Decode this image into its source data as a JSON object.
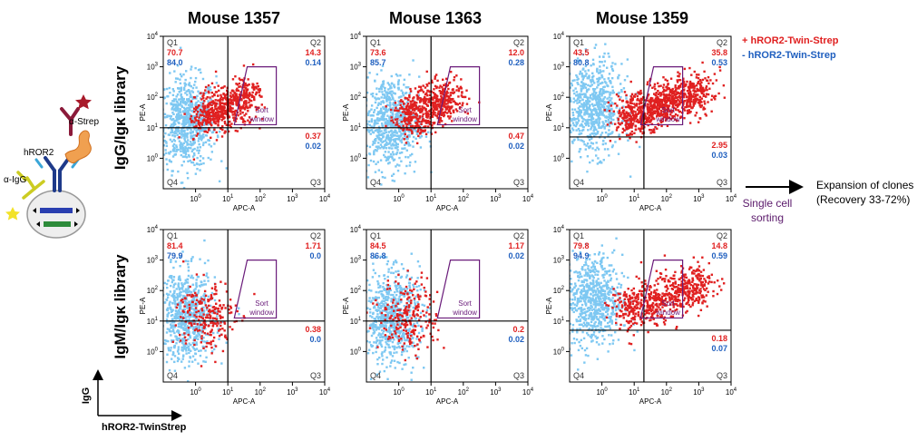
{
  "figure": {
    "legend_pos": "+ hROR2-Twin-Strep",
    "legend_neg": "- hROR2-Twin-Strep",
    "row_labels": [
      "IgG/Igκ library",
      "IgM/Igκ library"
    ],
    "schematic_labels": {
      "strep": "α-Strep",
      "hror2": "hROR2",
      "igg": "α-IgG"
    },
    "axis_arrow_y": "IgG",
    "axis_arrow_x": "hROR2-TwinStrep",
    "sorting_label": [
      "Single cell",
      "sorting"
    ],
    "expansion_label": [
      "Expansion of clones",
      "(Recovery 33-72%)"
    ],
    "colors": {
      "positive": "#e02020",
      "negative": "#1f5fbf",
      "cells_negative": "#7ec8f2",
      "gate": "#6a1b7a",
      "sorting_text": "#5b1a6b"
    }
  },
  "chart_data": [
    {
      "type": "scatter",
      "title": "Mouse 1357",
      "library": "IgG/Igκ",
      "xlabel": "APC-A",
      "ylabel": "PE-A",
      "xlim": [
        0.1,
        10000
      ],
      "ylim": [
        0.1,
        10000
      ],
      "scale": "log",
      "xticks": [
        "10^0",
        "10^1",
        "10^2",
        "10^3",
        "10^4"
      ],
      "yticks": [
        "10^0",
        "10^1",
        "10^2",
        "10^3",
        "10^4"
      ],
      "quadrant_divider": [
        10,
        10
      ],
      "gate_label": [
        "Sort",
        "window"
      ],
      "quadrants": {
        "Q1": {
          "pos": "70.7",
          "neg": "84.0"
        },
        "Q2": {
          "pos": "14.3",
          "neg": "0.14"
        },
        "Q3": {
          "pos": "0.37",
          "neg": "0.02"
        },
        "Q4": {
          "pos": "",
          "neg": ""
        }
      }
    },
    {
      "type": "scatter",
      "title": "Mouse 1363",
      "library": "IgG/Igκ",
      "xlabel": "APC-A",
      "ylabel": "PE-A",
      "xlim": [
        0.1,
        10000
      ],
      "ylim": [
        0.1,
        10000
      ],
      "scale": "log",
      "xticks": [
        "10^0",
        "10^1",
        "10^2",
        "10^3",
        "10^4"
      ],
      "yticks": [
        "10^0",
        "10^1",
        "10^2",
        "10^3",
        "10^4"
      ],
      "quadrant_divider": [
        10,
        10
      ],
      "gate_label": [
        "Sort",
        "window"
      ],
      "quadrants": {
        "Q1": {
          "pos": "73.6",
          "neg": "85.7"
        },
        "Q2": {
          "pos": "12.0",
          "neg": "0.28"
        },
        "Q3": {
          "pos": "0.47",
          "neg": "0.02"
        },
        "Q4": {
          "pos": "",
          "neg": ""
        }
      }
    },
    {
      "type": "scatter",
      "title": "Mouse 1359",
      "library": "IgG/Igκ",
      "xlabel": "APC-A",
      "ylabel": "PE-A",
      "xlim": [
        0.1,
        10000
      ],
      "ylim": [
        0.1,
        10000
      ],
      "scale": "log",
      "xticks": [
        "10^0",
        "10^1",
        "10^2",
        "10^3",
        "10^4"
      ],
      "yticks": [
        "10^0",
        "10^1",
        "10^2",
        "10^3",
        "10^4"
      ],
      "quadrant_divider": [
        20,
        5
      ],
      "gate_label": [
        "Sort",
        "window"
      ],
      "quadrants": {
        "Q1": {
          "pos": "43.5",
          "neg": "80.8"
        },
        "Q2": {
          "pos": "35.8",
          "neg": "0.53"
        },
        "Q3": {
          "pos": "2.95",
          "neg": "0.03"
        },
        "Q4": {
          "pos": "",
          "neg": ""
        }
      }
    },
    {
      "type": "scatter",
      "title": "Mouse 1357",
      "library": "IgM/Igκ",
      "xlabel": "APC-A",
      "ylabel": "PE-A",
      "xlim": [
        0.1,
        10000
      ],
      "ylim": [
        0.1,
        10000
      ],
      "scale": "log",
      "xticks": [
        "10^0",
        "10^1",
        "10^2",
        "10^3",
        "10^4"
      ],
      "yticks": [
        "10^0",
        "10^1",
        "10^2",
        "10^3",
        "10^4"
      ],
      "quadrant_divider": [
        10,
        10
      ],
      "gate_label": [
        "Sort",
        "window"
      ],
      "quadrants": {
        "Q1": {
          "pos": "81.4",
          "neg": "79.9"
        },
        "Q2": {
          "pos": "1.71",
          "neg": "0.0"
        },
        "Q3": {
          "pos": "0.38",
          "neg": "0.0"
        },
        "Q4": {
          "pos": "",
          "neg": ""
        }
      }
    },
    {
      "type": "scatter",
      "title": "Mouse 1363",
      "library": "IgM/Igκ",
      "xlabel": "APC-A",
      "ylabel": "PE-A",
      "xlim": [
        0.1,
        10000
      ],
      "ylim": [
        0.1,
        10000
      ],
      "scale": "log",
      "xticks": [
        "10^0",
        "10^1",
        "10^2",
        "10^3",
        "10^4"
      ],
      "yticks": [
        "10^0",
        "10^1",
        "10^2",
        "10^3",
        "10^4"
      ],
      "quadrant_divider": [
        10,
        10
      ],
      "gate_label": [
        "Sort",
        "window"
      ],
      "quadrants": {
        "Q1": {
          "pos": "84.5",
          "neg": "86.8"
        },
        "Q2": {
          "pos": "1.17",
          "neg": "0.02"
        },
        "Q3": {
          "pos": "0.2",
          "neg": "0.02"
        },
        "Q4": {
          "pos": "",
          "neg": ""
        }
      }
    },
    {
      "type": "scatter",
      "title": "Mouse 1359",
      "library": "IgM/Igκ",
      "xlabel": "APC-A",
      "ylabel": "PE-A",
      "xlim": [
        0.1,
        10000
      ],
      "ylim": [
        0.1,
        10000
      ],
      "scale": "log",
      "xticks": [
        "10^0",
        "10^1",
        "10^2",
        "10^3",
        "10^4"
      ],
      "yticks": [
        "10^0",
        "10^1",
        "10^2",
        "10^3",
        "10^4"
      ],
      "quadrant_divider": [
        20,
        5
      ],
      "gate_label": [
        "Sort",
        "window"
      ],
      "quadrants": {
        "Q1": {
          "pos": "79.8",
          "neg": "94.9"
        },
        "Q2": {
          "pos": "14.8",
          "neg": "0.59"
        },
        "Q3": {
          "pos": "0.18",
          "neg": "0.07"
        },
        "Q4": {
          "pos": "",
          "neg": ""
        }
      }
    }
  ]
}
